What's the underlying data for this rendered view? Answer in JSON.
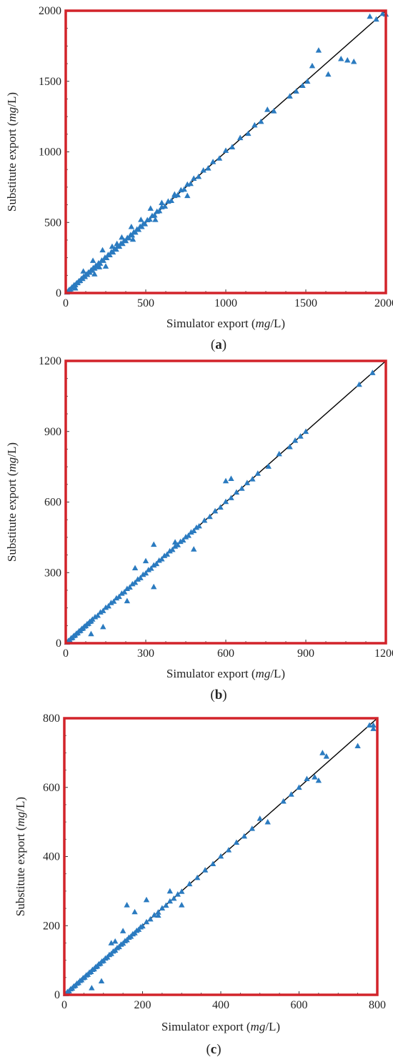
{
  "panels": [
    {
      "caption": "a",
      "xlabel_prefix": "Simulator export (",
      "ylabel_prefix": "Substitute export  (",
      "unit_italic": "mg",
      "unit_suffix": "/L)"
    },
    {
      "caption": "b",
      "xlabel_prefix": "Simulator export (",
      "ylabel_prefix": "Substitute export  (",
      "unit_italic": "mg",
      "unit_suffix": "/L)"
    },
    {
      "caption": "c",
      "xlabel_prefix": "Simulator export (",
      "ylabel_prefix": "Substitute export  (",
      "unit_italic": "mg",
      "unit_suffix": "/L)"
    }
  ],
  "colors": {
    "frame": "#d2232a",
    "marker": "#2b7bc0",
    "line": "#000000",
    "axis": "#333333"
  },
  "chart_data": [
    {
      "type": "scatter",
      "title": "",
      "xlabel": "Simulator export (mg/L)",
      "ylabel": "Substitute export  (mg/L)",
      "xlim": [
        0,
        2000
      ],
      "ylim": [
        0,
        2000
      ],
      "xticks": [
        0,
        500,
        1000,
        1500,
        2000
      ],
      "yticks": [
        0,
        500,
        1000,
        1500,
        2000
      ],
      "grid": false,
      "reference_line": [
        [
          0,
          0
        ],
        [
          2000,
          2000
        ]
      ],
      "series": [
        {
          "marker": "triangle",
          "x": [
            8,
            15,
            22,
            30,
            38,
            45,
            52,
            60,
            68,
            75,
            82,
            90,
            98,
            105,
            112,
            120,
            128,
            135,
            142,
            150,
            158,
            165,
            172,
            180,
            188,
            195,
            205,
            215,
            225,
            235,
            245,
            255,
            265,
            275,
            285,
            295,
            305,
            315,
            325,
            335,
            345,
            355,
            365,
            375,
            385,
            395,
            405,
            415,
            425,
            435,
            445,
            455,
            465,
            475,
            485,
            495,
            510,
            525,
            540,
            555,
            570,
            585,
            600,
            620,
            640,
            660,
            680,
            700,
            720,
            740,
            760,
            780,
            800,
            830,
            860,
            890,
            920,
            960,
            1000,
            1040,
            1090,
            1140,
            1180,
            1220,
            1260,
            1300,
            1400,
            1440,
            1480,
            1510,
            1540,
            1580,
            1720,
            1760,
            1800,
            1640,
            1900,
            1940,
            1980,
            2000,
            60,
            110,
            170,
            230,
            210,
            290,
            350,
            410,
            470,
            530,
            600,
            680,
            760,
            250,
            180,
            320,
            420,
            560
          ],
          "y": [
            6,
            14,
            25,
            28,
            41,
            44,
            57,
            58,
            72,
            73,
            86,
            88,
            103,
            102,
            118,
            116,
            133,
            131,
            148,
            146,
            163,
            160,
            179,
            175,
            195,
            190,
            212,
            210,
            232,
            230,
            252,
            250,
            272,
            270,
            292,
            290,
            312,
            310,
            332,
            330,
            352,
            350,
            372,
            370,
            392,
            390,
            412,
            410,
            432,
            430,
            452,
            450,
            472,
            470,
            492,
            490,
            518,
            522,
            548,
            552,
            578,
            582,
            610,
            615,
            650,
            655,
            690,
            695,
            730,
            735,
            770,
            775,
            812,
            825,
            870,
            885,
            930,
            955,
            1010,
            1035,
            1100,
            1130,
            1190,
            1215,
            1300,
            1290,
            1395,
            1430,
            1470,
            1500,
            1610,
            1720,
            1660,
            1650,
            1640,
            1550,
            1960,
            1940,
            1980,
            1975,
            35,
            155,
            230,
            305,
            185,
            330,
            395,
            470,
            520,
            600,
            640,
            700,
            690,
            190,
            135,
            350,
            380,
            520
          ]
        }
      ]
    },
    {
      "type": "scatter",
      "title": "",
      "xlabel": "Simulator export (mg/L)",
      "ylabel": "Substitute export  (mg/L)",
      "xlim": [
        0,
        1200
      ],
      "ylim": [
        0,
        1200
      ],
      "xticks": [
        0,
        300,
        600,
        900,
        1200
      ],
      "yticks": [
        0,
        300,
        600,
        900,
        1200
      ],
      "grid": false,
      "reference_line": [
        [
          0,
          0
        ],
        [
          1200,
          1200
        ]
      ],
      "series": [
        {
          "marker": "triangle",
          "x": [
            5,
            10,
            15,
            20,
            25,
            30,
            35,
            40,
            45,
            50,
            55,
            60,
            65,
            70,
            75,
            80,
            85,
            90,
            95,
            100,
            110,
            120,
            130,
            140,
            150,
            160,
            170,
            180,
            190,
            200,
            210,
            220,
            230,
            240,
            250,
            260,
            270,
            280,
            290,
            300,
            310,
            320,
            330,
            340,
            350,
            360,
            370,
            380,
            390,
            400,
            410,
            420,
            430,
            440,
            450,
            460,
            470,
            480,
            490,
            500,
            520,
            540,
            560,
            580,
            600,
            620,
            640,
            660,
            680,
            700,
            720,
            760,
            800,
            840,
            860,
            880,
            900,
            1100,
            1150,
            95,
            140,
            230,
            330,
            260,
            410,
            480,
            600,
            620,
            330,
            300
          ],
          "y": [
            4,
            11,
            14,
            22,
            24,
            32,
            34,
            42,
            44,
            52,
            54,
            62,
            64,
            72,
            74,
            82,
            84,
            92,
            94,
            102,
            112,
            118,
            132,
            138,
            152,
            158,
            172,
            178,
            192,
            198,
            212,
            218,
            232,
            238,
            252,
            258,
            272,
            278,
            292,
            298,
            312,
            318,
            332,
            338,
            352,
            358,
            372,
            378,
            392,
            398,
            412,
            418,
            432,
            438,
            452,
            458,
            472,
            478,
            492,
            498,
            522,
            538,
            562,
            578,
            602,
            618,
            642,
            658,
            682,
            698,
            722,
            752,
            805,
            835,
            862,
            880,
            900,
            1100,
            1150,
            40,
            70,
            180,
            420,
            320,
            430,
            400,
            690,
            700,
            240,
            350
          ]
        }
      ]
    },
    {
      "type": "scatter",
      "title": "",
      "xlabel": "Simulator export (mg/L)",
      "ylabel": "Substitute export  (mg/L)",
      "xlim": [
        0,
        800
      ],
      "ylim": [
        0,
        800
      ],
      "xticks": [
        0,
        200,
        400,
        600,
        800
      ],
      "yticks": [
        0,
        200,
        400,
        600,
        800
      ],
      "grid": false,
      "reference_line": [
        [
          0,
          0
        ],
        [
          800,
          800
        ]
      ],
      "series": [
        {
          "marker": "triangle",
          "x": [
            4,
            8,
            12,
            16,
            20,
            24,
            28,
            32,
            36,
            40,
            44,
            48,
            52,
            56,
            60,
            64,
            68,
            72,
            76,
            80,
            84,
            88,
            92,
            96,
            100,
            105,
            110,
            115,
            120,
            125,
            130,
            135,
            140,
            145,
            150,
            155,
            160,
            165,
            170,
            175,
            180,
            185,
            190,
            195,
            200,
            210,
            220,
            230,
            240,
            250,
            260,
            270,
            280,
            290,
            300,
            320,
            340,
            360,
            380,
            400,
            420,
            440,
            460,
            480,
            500,
            520,
            560,
            580,
            600,
            620,
            640,
            650,
            660,
            670,
            750,
            780,
            790,
            790,
            70,
            95,
            120,
            160,
            180,
            210,
            240,
            270,
            300,
            150,
            130
          ],
          "y": [
            3,
            9,
            11,
            17,
            19,
            25,
            27,
            33,
            35,
            41,
            43,
            49,
            51,
            57,
            59,
            65,
            67,
            73,
            75,
            81,
            83,
            89,
            91,
            97,
            99,
            106,
            109,
            116,
            119,
            126,
            129,
            136,
            139,
            146,
            149,
            156,
            159,
            166,
            169,
            176,
            179,
            186,
            189,
            196,
            199,
            211,
            219,
            231,
            239,
            251,
            259,
            271,
            279,
            291,
            299,
            321,
            339,
            361,
            379,
            401,
            419,
            441,
            459,
            481,
            510,
            500,
            560,
            580,
            600,
            625,
            630,
            620,
            700,
            690,
            720,
            780,
            770,
            780,
            20,
            40,
            150,
            260,
            240,
            275,
            230,
            300,
            260,
            185,
            155
          ]
        }
      ]
    }
  ]
}
